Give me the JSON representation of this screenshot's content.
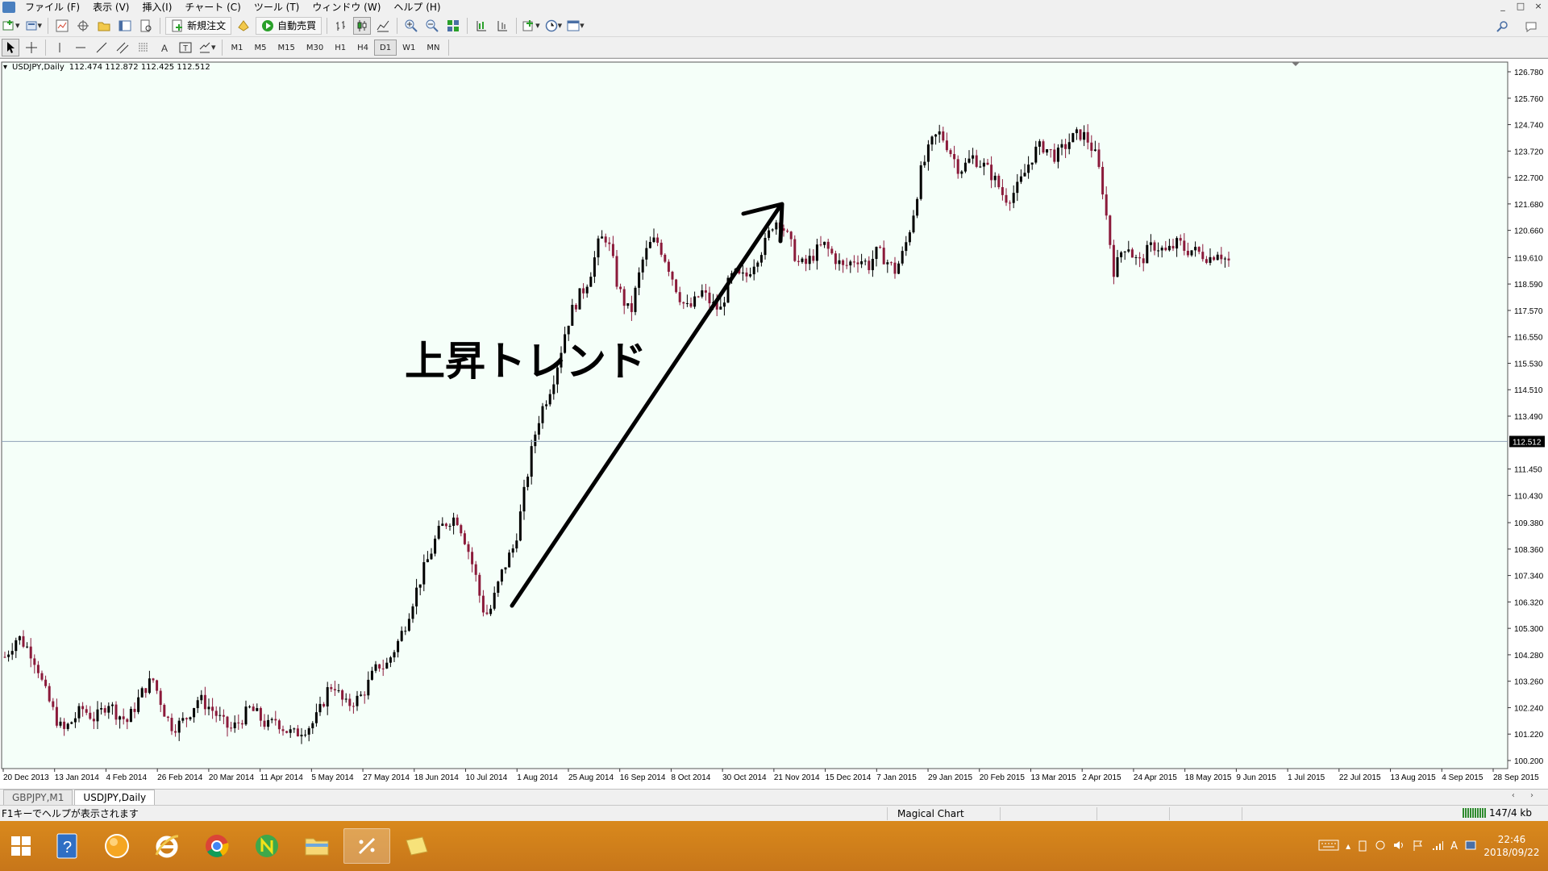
{
  "menubar": {
    "items": [
      "ファイル (F)",
      "表示 (V)",
      "挿入(I)",
      "チャート (C)",
      "ツール (T)",
      "ウィンドウ (W)",
      "ヘルプ (H)"
    ],
    "window_controls": [
      "_",
      "□",
      "×"
    ]
  },
  "toolbar1": {
    "new_order_label": "新規注文",
    "auto_trading_label": "自動売買"
  },
  "toolbar2": {
    "timeframes": [
      "M1",
      "M5",
      "M15",
      "M30",
      "H1",
      "H4",
      "D1",
      "W1",
      "MN"
    ],
    "active_timeframe": "D1"
  },
  "chart": {
    "header_symbol": "USDJPY,Daily",
    "header_ohlc": "112.474 112.872 112.425 112.512",
    "annotation_text": "上昇トレンド",
    "current_price_label": "112.512",
    "background_color": "#f5fff9",
    "bull_color": "#000000",
    "bear_color": "#8b1a3a",
    "price_line_color": "#8ea0b8"
  },
  "chart_data": {
    "type": "candlestick",
    "symbol": "USDJPY",
    "timeframe": "Daily",
    "y_ticks": [
      "126.780",
      "125.760",
      "124.740",
      "123.720",
      "122.700",
      "121.680",
      "120.660",
      "119.610",
      "118.590",
      "117.570",
      "116.550",
      "115.530",
      "114.510",
      "113.490",
      "111.450",
      "110.430",
      "109.380",
      "108.360",
      "107.340",
      "106.320",
      "105.300",
      "104.280",
      "103.260",
      "102.240",
      "101.220",
      "100.200"
    ],
    "x_ticks": [
      "20 Dec 2013",
      "13 Jan 2014",
      "4 Feb 2014",
      "26 Feb 2014",
      "20 Mar 2014",
      "11 Apr 2014",
      "5 May 2014",
      "27 May 2014",
      "18 Jun 2014",
      "10 Jul 2014",
      "1 Aug 2014",
      "25 Aug 2014",
      "16 Sep 2014",
      "8 Oct 2014",
      "30 Oct 2014",
      "21 Nov 2014",
      "15 Dec 2014",
      "7 Jan 2015",
      "29 Jan 2015",
      "20 Feb 2015",
      "13 Mar 2015",
      "2 Apr 2015",
      "24 Apr 2015",
      "18 May 2015",
      "9 Jun 2015",
      "1 Jul 2015",
      "22 Jul 2015",
      "13 Aug 2015",
      "4 Sep 2015",
      "28 Sep 2015"
    ],
    "ylim": [
      100.2,
      126.78
    ],
    "current_price": 112.512,
    "close_path": [
      [
        0,
        104.2
      ],
      [
        8,
        104.6
      ],
      [
        16,
        105.0
      ],
      [
        24,
        104.7
      ],
      [
        32,
        104.4
      ],
      [
        40,
        103.9
      ],
      [
        48,
        103.0
      ],
      [
        56,
        102.4
      ],
      [
        64,
        101.8
      ],
      [
        72,
        101.3
      ],
      [
        80,
        101.6
      ],
      [
        88,
        101.9
      ],
      [
        96,
        102.2
      ],
      [
        104,
        102.0
      ],
      [
        112,
        101.8
      ],
      [
        120,
        102.1
      ],
      [
        128,
        102.5
      ],
      [
        136,
        102.1
      ],
      [
        144,
        101.9
      ],
      [
        152,
        101.7
      ],
      [
        160,
        102.2
      ],
      [
        168,
        102.7
      ],
      [
        176,
        103.1
      ],
      [
        184,
        103.3
      ],
      [
        192,
        102.6
      ],
      [
        200,
        101.9
      ],
      [
        208,
        101.5
      ],
      [
        216,
        101.6
      ],
      [
        224,
        101.8
      ],
      [
        232,
        102.2
      ],
      [
        240,
        102.6
      ],
      [
        248,
        102.4
      ],
      [
        256,
        102.2
      ],
      [
        264,
        101.9
      ],
      [
        272,
        101.6
      ],
      [
        280,
        101.4
      ],
      [
        288,
        101.6
      ],
      [
        296,
        101.9
      ],
      [
        304,
        102.2
      ],
      [
        312,
        102.0
      ],
      [
        320,
        101.7
      ],
      [
        328,
        101.5
      ],
      [
        336,
        101.8
      ],
      [
        344,
        101.5
      ],
      [
        352,
        101.3
      ],
      [
        360,
        101.2
      ],
      [
        368,
        101.4
      ],
      [
        376,
        101.5
      ],
      [
        384,
        101.7
      ],
      [
        392,
        102.2
      ],
      [
        400,
        102.9
      ],
      [
        408,
        103.2
      ],
      [
        416,
        102.6
      ],
      [
        424,
        102.3
      ],
      [
        432,
        102.5
      ],
      [
        440,
        102.6
      ],
      [
        448,
        103.0
      ],
      [
        456,
        103.5
      ],
      [
        464,
        103.9
      ],
      [
        472,
        103.8
      ],
      [
        480,
        104.3
      ],
      [
        488,
        104.8
      ],
      [
        496,
        105.4
      ],
      [
        504,
        106.2
      ],
      [
        512,
        106.9
      ],
      [
        520,
        107.6
      ],
      [
        528,
        108.2
      ],
      [
        536,
        108.9
      ],
      [
        544,
        109.3
      ],
      [
        552,
        109.5
      ],
      [
        560,
        109.6
      ],
      [
        568,
        109.0
      ],
      [
        576,
        108.2
      ],
      [
        584,
        107.3
      ],
      [
        592,
        106.1
      ],
      [
        600,
        105.8
      ],
      [
        608,
        106.6
      ],
      [
        616,
        107.4
      ],
      [
        624,
        108.0
      ],
      [
        632,
        108.5
      ],
      [
        640,
        109.8
      ],
      [
        648,
        111.2
      ],
      [
        656,
        112.6
      ],
      [
        664,
        113.6
      ],
      [
        672,
        114.2
      ],
      [
        680,
        114.9
      ],
      [
        688,
        115.8
      ],
      [
        696,
        116.9
      ],
      [
        704,
        117.6
      ],
      [
        712,
        118.1
      ],
      [
        720,
        118.5
      ],
      [
        728,
        119.2
      ],
      [
        736,
        120.1
      ],
      [
        744,
        120.5
      ],
      [
        752,
        119.8
      ],
      [
        760,
        118.5
      ],
      [
        768,
        117.9
      ],
      [
        776,
        117.4
      ],
      [
        784,
        118.6
      ],
      [
        792,
        119.6
      ],
      [
        800,
        120.1
      ],
      [
        808,
        120.3
      ],
      [
        816,
        119.8
      ],
      [
        824,
        119.2
      ],
      [
        832,
        118.5
      ],
      [
        840,
        117.9
      ],
      [
        848,
        117.6
      ],
      [
        856,
        117.9
      ],
      [
        864,
        118.3
      ],
      [
        872,
        118.0
      ],
      [
        880,
        117.7
      ],
      [
        888,
        117.6
      ],
      [
        896,
        118.5
      ],
      [
        904,
        119.0
      ],
      [
        912,
        118.8
      ],
      [
        920,
        118.9
      ],
      [
        928,
        119.4
      ],
      [
        936,
        119.8
      ],
      [
        944,
        120.2
      ],
      [
        952,
        120.9
      ],
      [
        960,
        121.1
      ],
      [
        968,
        120.6
      ],
      [
        976,
        120.0
      ],
      [
        984,
        119.4
      ],
      [
        992,
        119.3
      ],
      [
        1000,
        119.6
      ],
      [
        1008,
        119.9
      ],
      [
        1016,
        120.1
      ],
      [
        1024,
        119.8
      ],
      [
        1032,
        119.5
      ],
      [
        1040,
        119.2
      ],
      [
        1048,
        119.4
      ],
      [
        1056,
        119.6
      ],
      [
        1064,
        119.5
      ],
      [
        1072,
        119.3
      ],
      [
        1080,
        119.8
      ],
      [
        1088,
        119.7
      ],
      [
        1096,
        119.4
      ],
      [
        1104,
        119.1
      ],
      [
        1112,
        119.6
      ],
      [
        1120,
        120.4
      ],
      [
        1128,
        121.5
      ],
      [
        1136,
        122.9
      ],
      [
        1144,
        123.6
      ],
      [
        1152,
        124.2
      ],
      [
        1160,
        124.4
      ],
      [
        1168,
        124.0
      ],
      [
        1176,
        123.5
      ],
      [
        1184,
        123.0
      ],
      [
        1192,
        123.2
      ],
      [
        1200,
        123.5
      ],
      [
        1208,
        123.3
      ],
      [
        1216,
        123.1
      ],
      [
        1224,
        122.8
      ],
      [
        1232,
        122.4
      ],
      [
        1240,
        121.9
      ],
      [
        1248,
        122.0
      ],
      [
        1256,
        122.3
      ],
      [
        1264,
        122.8
      ],
      [
        1272,
        123.4
      ],
      [
        1280,
        123.8
      ],
      [
        1288,
        123.9
      ],
      [
        1296,
        123.7
      ],
      [
        1304,
        123.5
      ],
      [
        1312,
        123.8
      ],
      [
        1320,
        124.1
      ],
      [
        1328,
        124.3
      ],
      [
        1336,
        124.4
      ],
      [
        1344,
        124.1
      ],
      [
        1352,
        123.6
      ],
      [
        1360,
        122.6
      ],
      [
        1368,
        120.8
      ],
      [
        1376,
        119.0
      ],
      [
        1384,
        119.8
      ],
      [
        1392,
        120.2
      ],
      [
        1400,
        119.6
      ],
      [
        1408,
        119.4
      ],
      [
        1416,
        119.8
      ],
      [
        1424,
        120.1
      ],
      [
        1432,
        120.0
      ],
      [
        1440,
        119.8
      ],
      [
        1448,
        120.0
      ],
      [
        1456,
        120.2
      ],
      [
        1464,
        119.9
      ],
      [
        1472,
        119.9
      ],
      [
        1480,
        119.8
      ],
      [
        1488,
        119.7
      ],
      [
        1496,
        119.6
      ],
      [
        1504,
        119.9
      ],
      [
        1512,
        119.6
      ],
      [
        1520,
        119.4
      ]
    ]
  },
  "tabs": [
    "GBPJPY,M1",
    "USDJPY,Daily"
  ],
  "active_tab": "USDJPY,Daily",
  "statusbar": {
    "help_text": "F1キーでヘルプが表示されます",
    "profile": "Magical Chart",
    "traffic": "147/4 kb"
  },
  "taskbar": {
    "apps": [
      "help-app",
      "browser-app-orange",
      "internet-explorer",
      "chrome",
      "n-app",
      "file-explorer",
      "metatrader",
      "folder-app"
    ],
    "time": "22:46",
    "date": "2018/09/22"
  }
}
